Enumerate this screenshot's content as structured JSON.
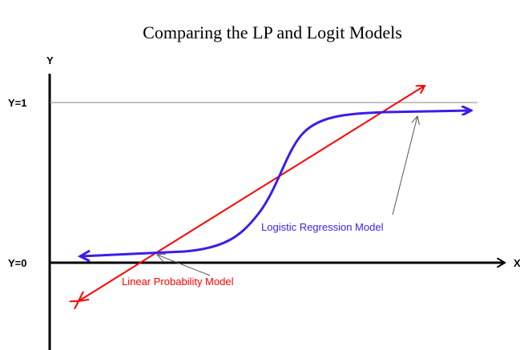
{
  "title": "Comparing the LP and Logit Models",
  "axes": {
    "y_label": "Y",
    "x_label": "X",
    "y_high": "Y=1",
    "y_low": "Y=0"
  },
  "annotations": {
    "logistic": "Logistic Regression Model",
    "linear": "Linear Probability Model"
  }
}
